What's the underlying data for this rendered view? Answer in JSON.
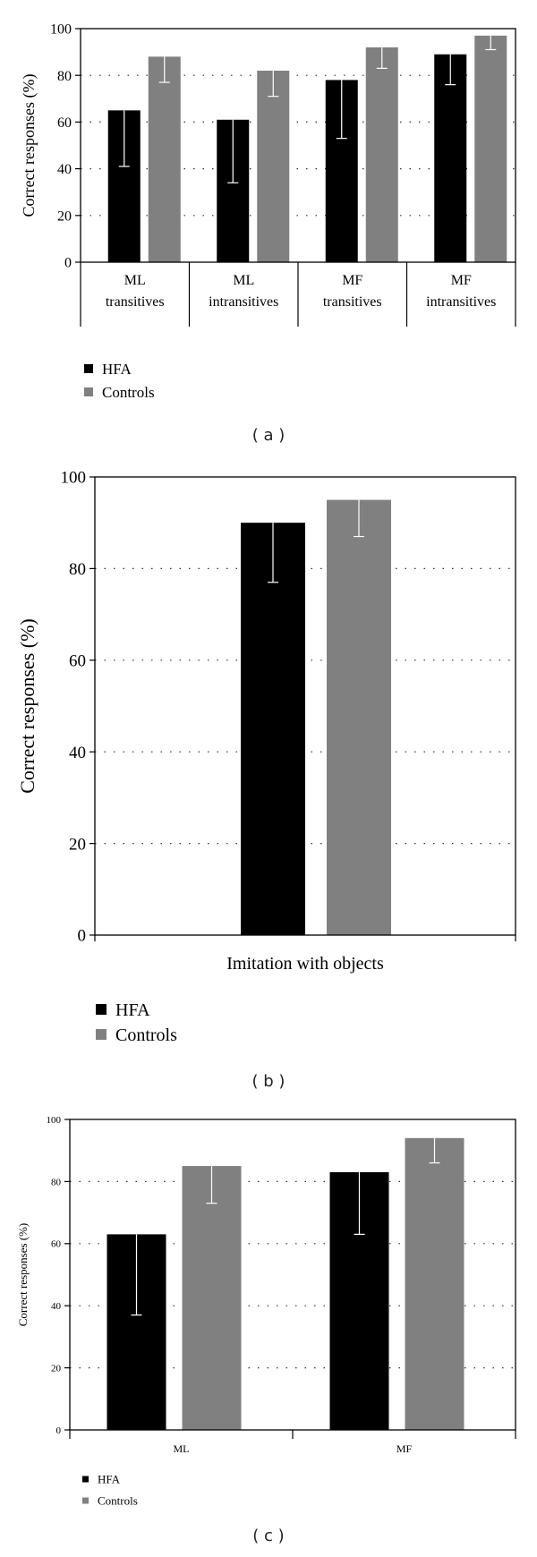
{
  "colors": {
    "hfa": "#000000",
    "controls": "#808080",
    "axis": "#000000",
    "error_bar": "#ffffff"
  },
  "legend": {
    "hfa": "HFA",
    "controls": "Controls"
  },
  "captions": {
    "a": "( a )",
    "b": "( b )",
    "c": "( c )"
  },
  "chart_data": [
    {
      "type": "bar",
      "panel": "a",
      "ylabel": "Correct responses (%)",
      "ylim": [
        0,
        100
      ],
      "yticks": [
        0,
        20,
        40,
        60,
        80,
        100
      ],
      "grid": "dotted-horizontal",
      "categories": [
        [
          "ML",
          "transitives"
        ],
        [
          "ML",
          "intransitives"
        ],
        [
          "MF",
          "transitives"
        ],
        [
          "MF",
          "intransitives"
        ]
      ],
      "series": [
        {
          "name": "HFA",
          "values": [
            65,
            61,
            78,
            89
          ],
          "error_low": [
            41,
            34,
            53,
            76
          ]
        },
        {
          "name": "Controls",
          "values": [
            88,
            82,
            92,
            97
          ],
          "error_low": [
            77,
            71,
            83,
            91
          ]
        }
      ]
    },
    {
      "type": "bar",
      "panel": "b",
      "ylabel": "Correct responses (%)",
      "ylim": [
        0,
        100
      ],
      "yticks": [
        0,
        20,
        40,
        60,
        80,
        100
      ],
      "grid": "dotted-horizontal",
      "categories": [
        [
          "Imitation with objects"
        ]
      ],
      "series": [
        {
          "name": "HFA",
          "values": [
            90
          ],
          "error_low": [
            77
          ]
        },
        {
          "name": "Controls",
          "values": [
            95
          ],
          "error_low": [
            87
          ]
        }
      ]
    },
    {
      "type": "bar",
      "panel": "c",
      "ylabel": "Correct responses (%)",
      "ylim": [
        0,
        100
      ],
      "yticks": [
        0,
        20,
        40,
        60,
        80,
        100
      ],
      "grid": "dotted-horizontal",
      "categories": [
        [
          "ML"
        ],
        [
          "MF"
        ]
      ],
      "series": [
        {
          "name": "HFA",
          "values": [
            63,
            83
          ],
          "error_low": [
            37,
            63
          ]
        },
        {
          "name": "Controls",
          "values": [
            85,
            94
          ],
          "error_low": [
            73,
            86
          ]
        }
      ]
    }
  ]
}
